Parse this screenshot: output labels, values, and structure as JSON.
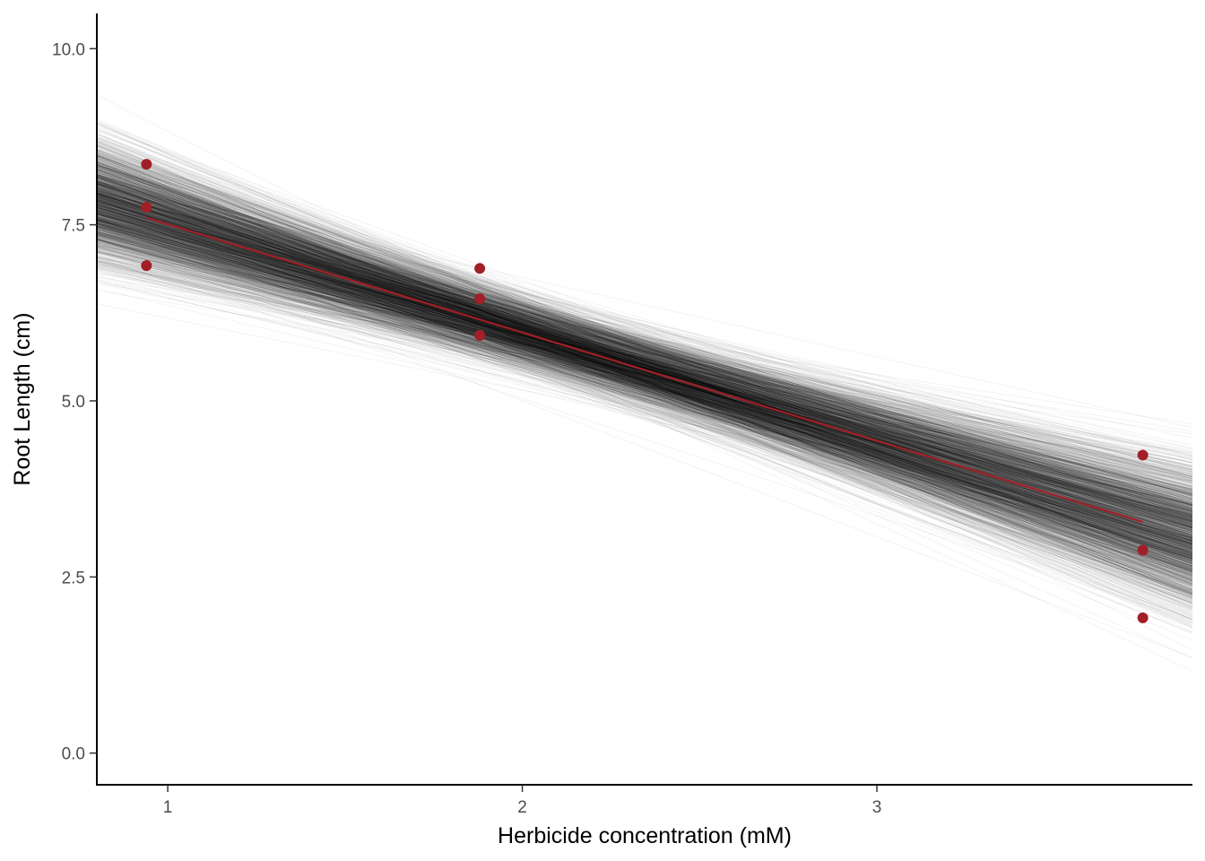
{
  "chart_data": {
    "type": "scatter",
    "title": "",
    "xlabel": "Herbicide concentration (mM)",
    "ylabel": "Root Length (cm)",
    "xlim": [
      0.8,
      3.89
    ],
    "ylim": [
      -0.45,
      10.5
    ],
    "x_ticks": [
      "1",
      "2",
      "3"
    ],
    "y_ticks": [
      "0.0",
      "2.5",
      "5.0",
      "7.5",
      "10.0"
    ],
    "grid": false,
    "legend": "none",
    "colors": {
      "points": "#A11F26",
      "fit_line": "#A11F26",
      "posterior_lines": "#000000",
      "axis": "#000000",
      "tick_labels": "#4d4d4d"
    },
    "points": [
      {
        "x": 0.94,
        "y": 8.36
      },
      {
        "x": 0.94,
        "y": 7.75
      },
      {
        "x": 0.94,
        "y": 6.92
      },
      {
        "x": 1.88,
        "y": 6.88
      },
      {
        "x": 1.88,
        "y": 6.45
      },
      {
        "x": 1.88,
        "y": 5.93
      },
      {
        "x": 3.75,
        "y": 4.23
      },
      {
        "x": 3.75,
        "y": 2.88
      },
      {
        "x": 3.75,
        "y": 1.92
      }
    ],
    "fit_line": {
      "x": [
        0.94,
        3.75
      ],
      "y": [
        7.6,
        3.28
      ]
    },
    "posterior_lines": {
      "count": 2000,
      "slope_mean": -1.54,
      "slope_sd": 0.25,
      "center_x": 2.19,
      "center_y": 5.68,
      "center_sd": 0.25
    }
  }
}
